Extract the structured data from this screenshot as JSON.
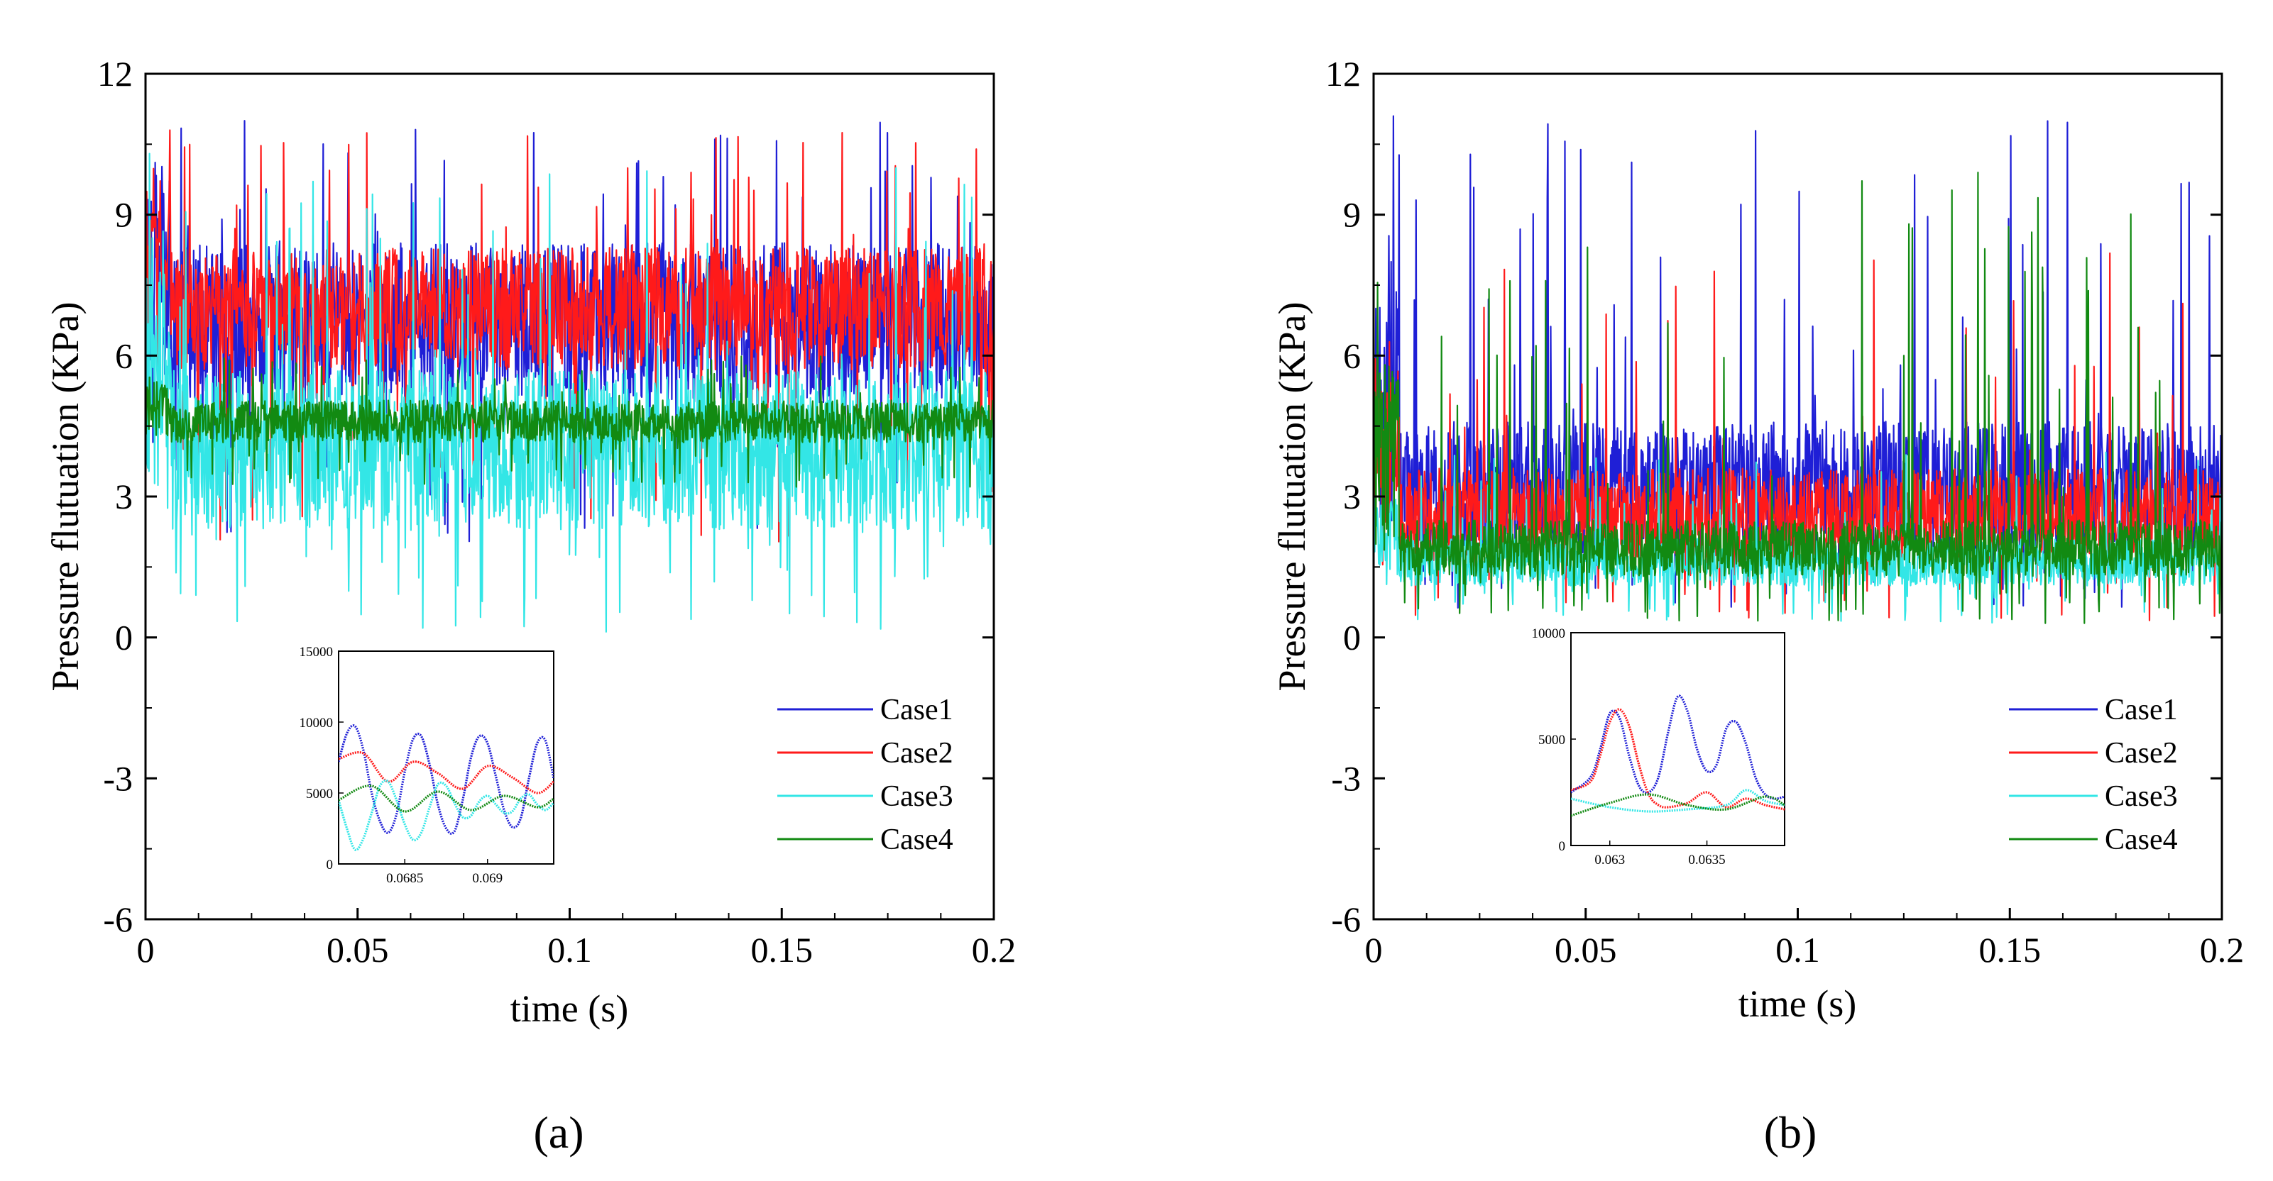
{
  "figure": {
    "series_colors": {
      "Case1": "#1f1fd6",
      "Case2": "#ff1a1a",
      "Case3": "#33e6e6",
      "Case4": "#128a12"
    }
  },
  "chart_data": [
    {
      "type": "line",
      "panel_label": "a",
      "caption": "(a)",
      "xlabel": "time (s)",
      "ylabel": "Pressure flutuation (KPa)",
      "xlim": [
        0,
        0.2
      ],
      "ylim": [
        -6,
        12
      ],
      "xticks": [
        0,
        0.05,
        0.1,
        0.15,
        0.2
      ],
      "xtick_labels": [
        "0",
        "0.05",
        "0.1",
        "0.15",
        "0.2"
      ],
      "yticks": [
        -6,
        -3,
        0,
        3,
        6,
        9,
        12
      ],
      "ytick_labels": [
        "-6",
        "-3",
        "0",
        "3",
        "6",
        "9",
        "12"
      ],
      "legend": [
        "Case1",
        "Case2",
        "Case3",
        "Case4"
      ],
      "legend_position": "lower-right",
      "series": [
        {
          "name": "Case1",
          "mean": 6.7,
          "spread": 1.7,
          "spike_max": 11.0,
          "min": 2.0
        },
        {
          "name": "Case2",
          "mean": 7.0,
          "spread": 1.3,
          "spike_max": 10.8,
          "min": 2.0
        },
        {
          "name": "Case3",
          "mean": 4.0,
          "spread": 1.7,
          "spike_max": 10.3,
          "min": 0.1
        },
        {
          "name": "Case4",
          "mean": 4.6,
          "spread": 0.45,
          "spike_max": 6.0,
          "min": 3.2
        }
      ],
      "inset": {
        "xlim": [
          0.0681,
          0.0694
        ],
        "ylim": [
          0,
          15000
        ],
        "xticks": [
          0.0685,
          0.069
        ],
        "xtick_labels": [
          "0.0685",
          "0.069"
        ],
        "yticks": [
          0,
          5000,
          10000,
          15000
        ],
        "ytick_labels": [
          "0",
          "5000",
          "10000",
          "15000"
        ],
        "series": [
          {
            "name": "Case1",
            "x": [
              0.0681,
              0.06815,
              0.0682,
              0.06825,
              0.0683,
              0.06835,
              0.0684,
              0.06845,
              0.0685,
              0.06855,
              0.0686,
              0.06865,
              0.0687,
              0.06875,
              0.0688,
              0.06885,
              0.0689,
              0.06895,
              0.069,
              0.06905,
              0.0691,
              0.06915,
              0.0692,
              0.06925,
              0.0693,
              0.06935,
              0.0694
            ],
            "y": [
              7200,
              9200,
              9700,
              8000,
              5000,
              3000,
              2200,
              3500,
              6500,
              8800,
              9000,
              7000,
              4200,
              2500,
              2300,
              4500,
              7500,
              9000,
              8500,
              6200,
              3800,
              2600,
              3200,
              6000,
              8500,
              8700,
              6000
            ]
          },
          {
            "name": "Case2",
            "x": [
              0.0681,
              0.06825,
              0.0684,
              0.06855,
              0.0687,
              0.06885,
              0.069,
              0.06915,
              0.0693,
              0.0694
            ],
            "y": [
              7400,
              7800,
              5800,
              7200,
              6400,
              5300,
              6900,
              6100,
              5000,
              5800
            ]
          },
          {
            "name": "Case3",
            "x": [
              0.0681,
              0.06815,
              0.0682,
              0.06825,
              0.0683,
              0.06835,
              0.0684,
              0.06845,
              0.0685,
              0.06855,
              0.0686,
              0.06865,
              0.0687,
              0.06875,
              0.0688,
              0.06885,
              0.0689,
              0.06895,
              0.069,
              0.06905,
              0.0691,
              0.06915,
              0.0692,
              0.06925,
              0.0693,
              0.06935,
              0.0694
            ],
            "y": [
              4500,
              2500,
              1000,
              1800,
              3600,
              5500,
              5800,
              4500,
              2800,
              1700,
              2200,
              4000,
              5600,
              5500,
              4300,
              3300,
              3400,
              4400,
              4800,
              4200,
              3600,
              3700,
              4600,
              4900,
              4200,
              3800,
              4300
            ]
          },
          {
            "name": "Case4",
            "x": [
              0.0681,
              0.0683,
              0.0685,
              0.0687,
              0.0689,
              0.0691,
              0.0693,
              0.0694
            ],
            "y": [
              4500,
              5500,
              3700,
              5100,
              3800,
              4800,
              4000,
              4600
            ]
          }
        ]
      }
    },
    {
      "type": "line",
      "panel_label": "b",
      "caption": "(b)",
      "xlabel": "time (s)",
      "ylabel": "Pressure flutuation (KPa)",
      "xlim": [
        0,
        0.2
      ],
      "ylim": [
        -6,
        12
      ],
      "xticks": [
        0,
        0.05,
        0.1,
        0.15,
        0.2
      ],
      "xtick_labels": [
        "0",
        "0.05",
        "0.1",
        "0.15",
        "0.2"
      ],
      "yticks": [
        -6,
        -3,
        0,
        3,
        6,
        9,
        12
      ],
      "ytick_labels": [
        "-6",
        "-3",
        "0",
        "3",
        "6",
        "9",
        "12"
      ],
      "legend": [
        "Case1",
        "Case2",
        "Case3",
        "Case4"
      ],
      "legend_position": "lower-right",
      "series": [
        {
          "name": "Case1",
          "mean": 3.2,
          "spread": 1.4,
          "spike_max": 11.1,
          "min": 0.6
        },
        {
          "name": "Case2",
          "mean": 2.6,
          "spread": 1.0,
          "spike_max": 8.2,
          "min": 0.3
        },
        {
          "name": "Case3",
          "mean": 1.6,
          "spread": 0.5,
          "spike_max": 4.0,
          "min": 0.3
        },
        {
          "name": "Case4",
          "mean": 1.9,
          "spread": 0.6,
          "spike_max": 9.9,
          "min": 0.3
        }
      ],
      "inset": {
        "xlim": [
          0.0628,
          0.0639
        ],
        "ylim": [
          0,
          10000
        ],
        "xticks": [
          0.063,
          0.0635
        ],
        "xtick_labels": [
          "0.063",
          "0.0635"
        ],
        "yticks": [
          0,
          5000,
          10000
        ],
        "ytick_labels": [
          "0",
          "5000",
          "10000"
        ],
        "series": [
          {
            "name": "Case1",
            "x": [
              0.0628,
              0.0629,
              0.06295,
              0.063,
              0.06305,
              0.0631,
              0.06315,
              0.0632,
              0.06325,
              0.0633,
              0.06335,
              0.0634,
              0.06345,
              0.0635,
              0.06355,
              0.0636,
              0.06365,
              0.0637,
              0.06375,
              0.0638,
              0.06385,
              0.0639
            ],
            "y": [
              2500,
              3200,
              4500,
              6200,
              6000,
              4200,
              2800,
              2500,
              3200,
              5300,
              7000,
              6300,
              4500,
              3500,
              3800,
              5500,
              5800,
              4800,
              3200,
              2400,
              2200,
              2300
            ]
          },
          {
            "name": "Case2",
            "x": [
              0.0628,
              0.0629,
              0.06295,
              0.063,
              0.06305,
              0.0631,
              0.06315,
              0.0632,
              0.06325,
              0.0633,
              0.0634,
              0.0635,
              0.0636,
              0.0637,
              0.0638,
              0.0639
            ],
            "y": [
              2600,
              3000,
              4200,
              5800,
              6400,
              5600,
              3800,
              2400,
              1900,
              1800,
              2000,
              2500,
              1800,
              2200,
              1900,
              1700
            ]
          },
          {
            "name": "Case3",
            "x": [
              0.0628,
              0.063,
              0.0632,
              0.0634,
              0.0636,
              0.0637,
              0.0638,
              0.0639
            ],
            "y": [
              2200,
              1800,
              1600,
              1700,
              1900,
              2600,
              2100,
              1900
            ]
          },
          {
            "name": "Case4",
            "x": [
              0.0628,
              0.063,
              0.0632,
              0.0634,
              0.0636,
              0.0638,
              0.0639
            ],
            "y": [
              1400,
              2000,
              2400,
              1900,
              1700,
              2300,
              1900
            ]
          }
        ]
      }
    }
  ]
}
